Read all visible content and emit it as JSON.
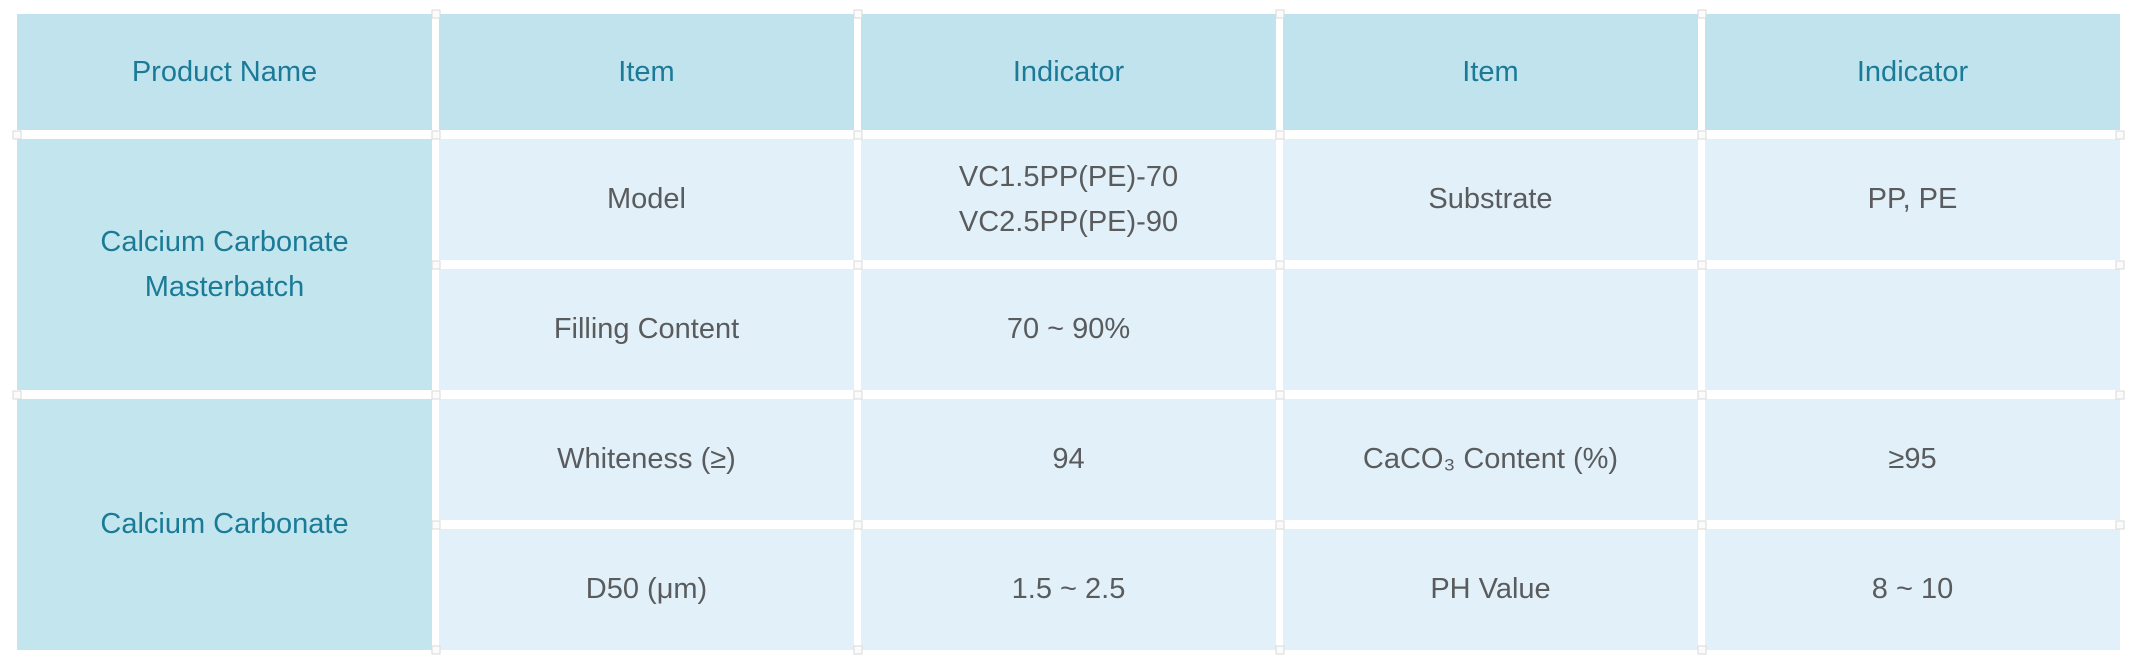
{
  "table": {
    "headers": [
      "Product Name",
      "Item",
      "Indicator",
      "Item",
      "Indicator"
    ],
    "groups": [
      {
        "product": "Calcium Carbonate Masterbatch",
        "rows": [
          {
            "item": "Model",
            "indicator": "VC1.5PP(PE)-70\nVC2.5PP(PE)-90",
            "item2": "Substrate",
            "indicator2": "PP, PE"
          },
          {
            "item": "Filling Content",
            "indicator": "70 ~ 90%",
            "item2": "",
            "indicator2": ""
          }
        ]
      },
      {
        "product": "Calcium Carbonate",
        "rows": [
          {
            "item": "Whiteness (≥)",
            "indicator": "94",
            "item2": "CaCO₃ Content (%)",
            "indicator2": "≥95"
          },
          {
            "item": "D50 (μm)",
            "indicator": "1.5 ~ 2.5",
            "item2": "PH Value",
            "indicator2": "8 ~ 10"
          }
        ]
      }
    ],
    "colors": {
      "header_bg": "#c0e3ee",
      "product_bg": "#c3e5ee",
      "cell_bg": "#e2f1f9",
      "header_text": "#1b7b97",
      "body_text": "#595b5d"
    }
  }
}
